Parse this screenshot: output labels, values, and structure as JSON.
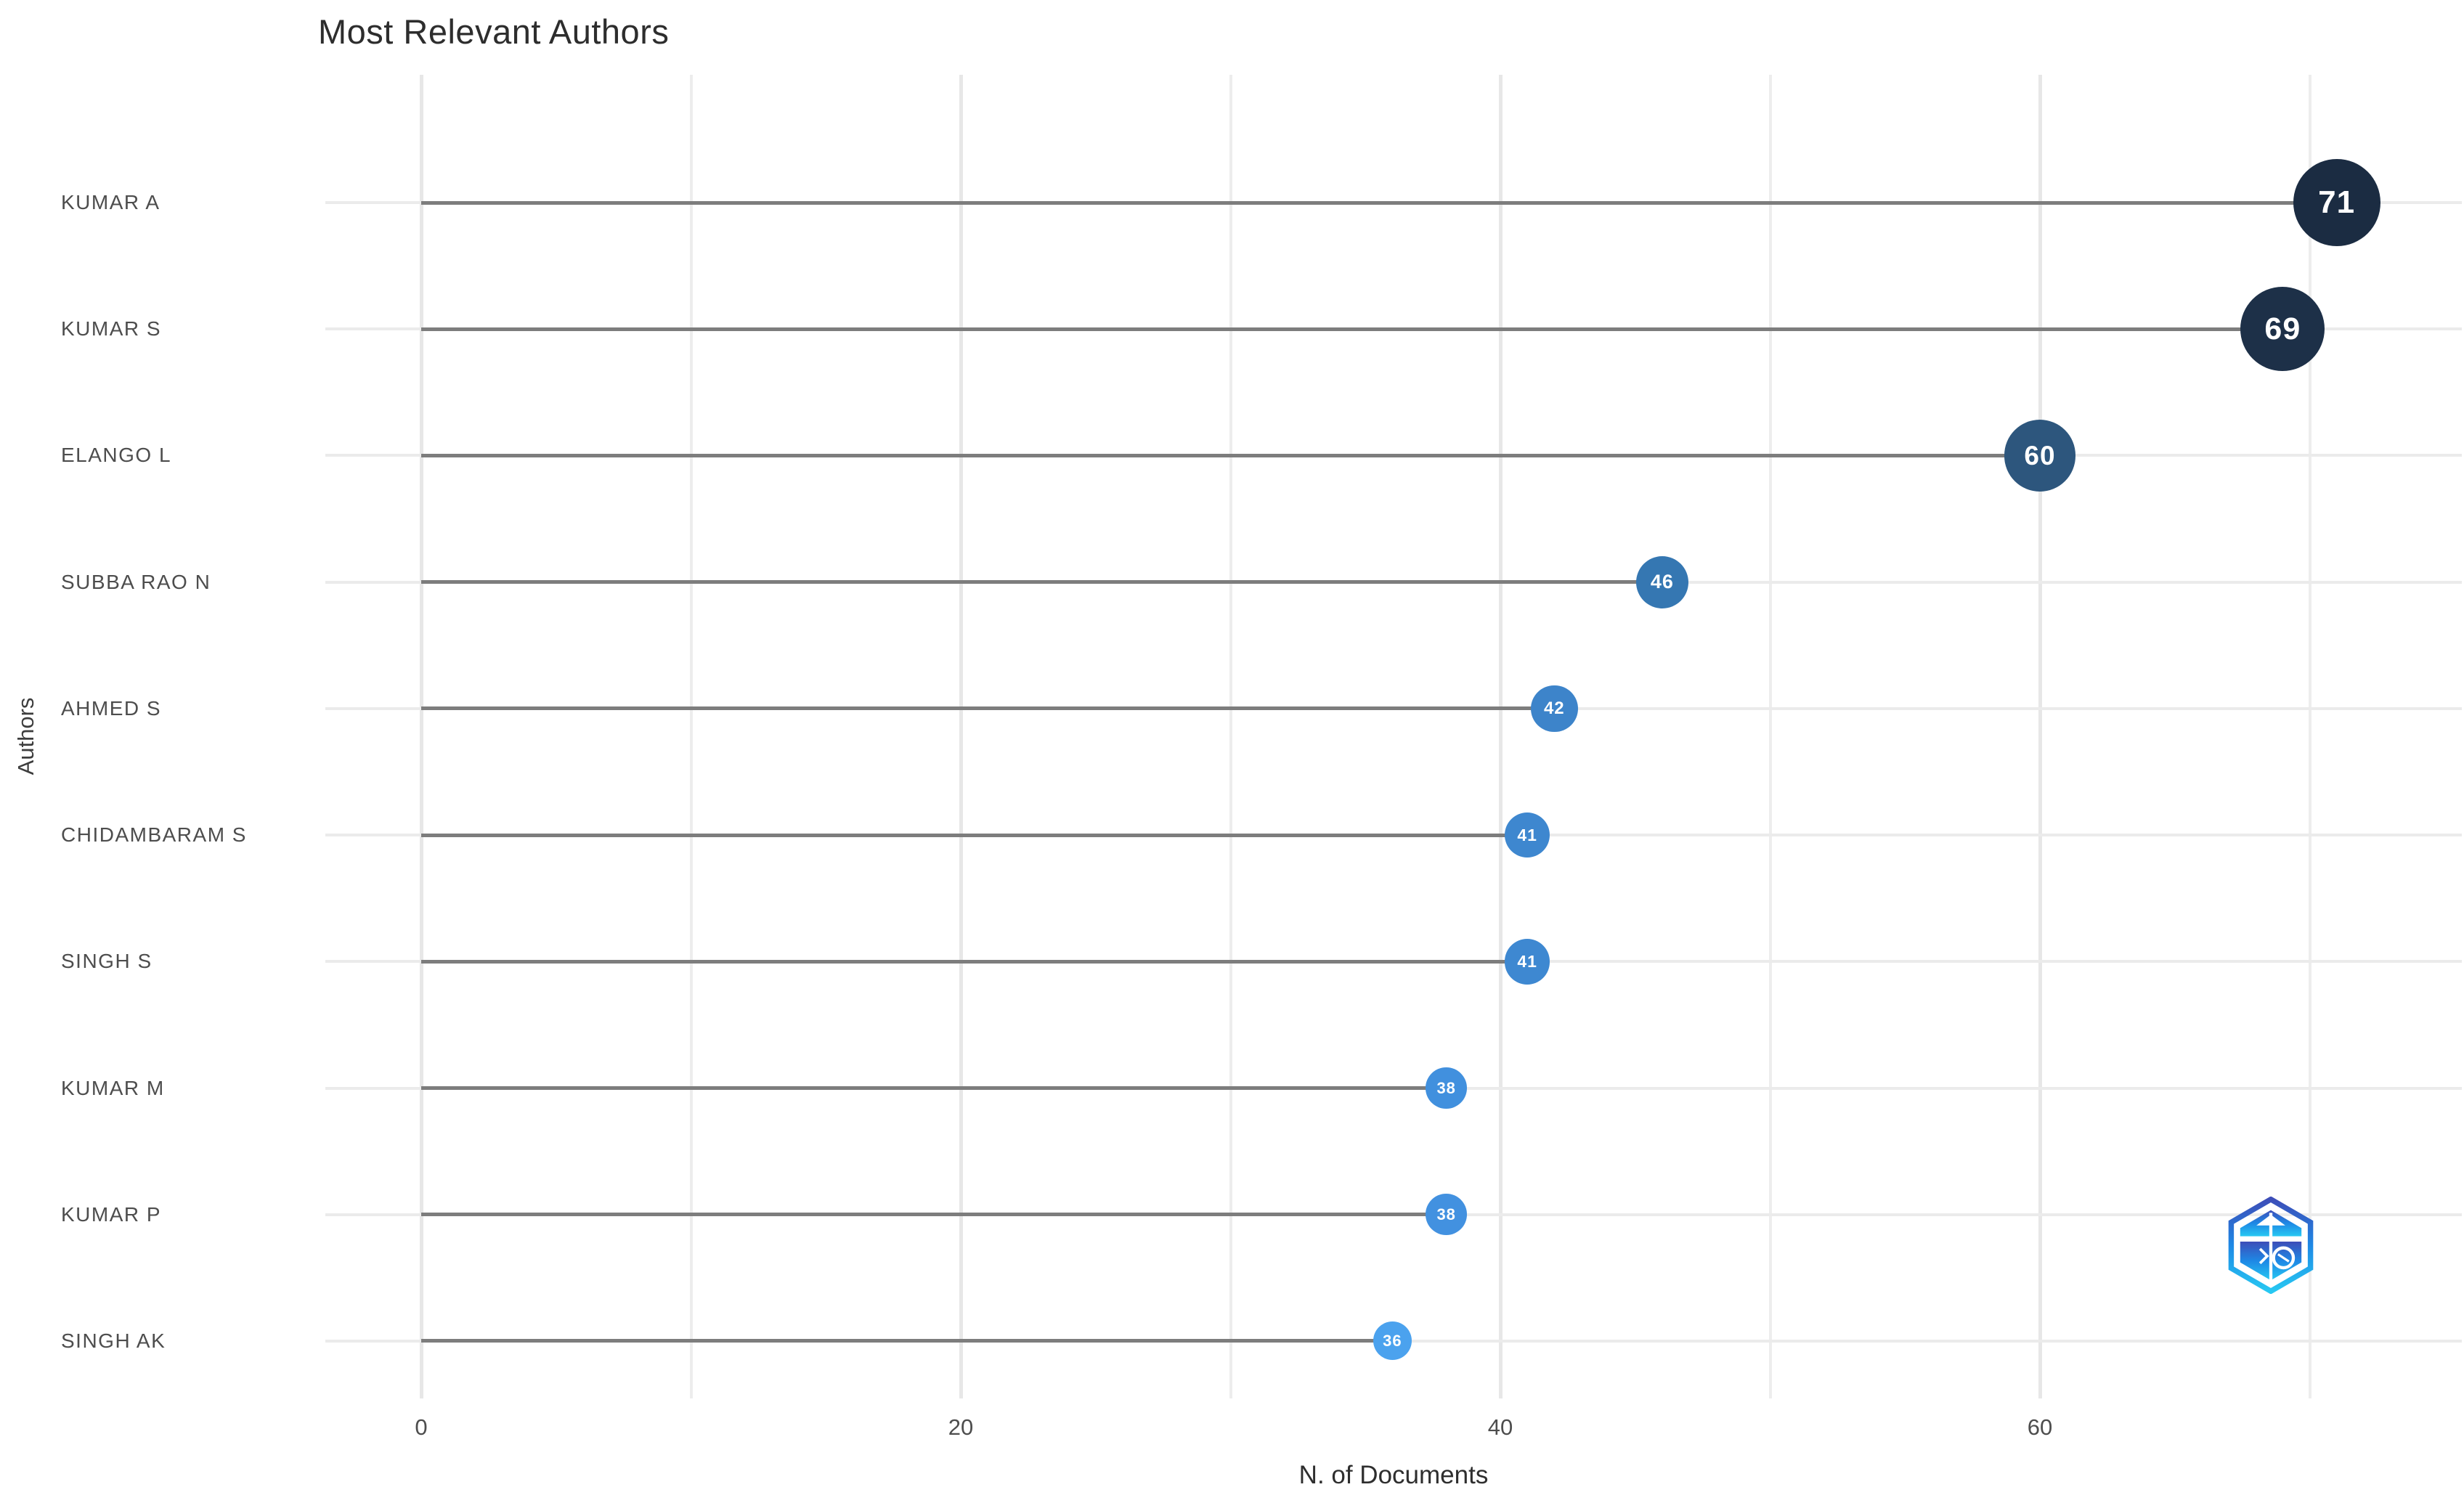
{
  "title": "Most Relevant Authors",
  "chart_data": {
    "type": "scatter",
    "variant": "lollipop-horizontal",
    "title": "Most Relevant Authors",
    "xlabel": "N. of Documents",
    "ylabel": "Authors",
    "categories": [
      "KUMAR A",
      "KUMAR S",
      "ELANGO L",
      "SUBBA RAO N",
      "AHMED S",
      "CHIDAMBARAM S",
      "SINGH S",
      "KUMAR M",
      "KUMAR P",
      "SINGH AK"
    ],
    "values": [
      71,
      69,
      60,
      46,
      42,
      41,
      41,
      38,
      38,
      36
    ],
    "point_colors": [
      "#1b2c42",
      "#1d3048",
      "#2d567d",
      "#3577b2",
      "#3d84ca",
      "#3e87cf",
      "#3e88d1",
      "#4190de",
      "#4291e0",
      "#4ba2ee"
    ],
    "point_label_color": "#ffffff",
    "xticks": [
      0,
      20,
      40,
      60
    ],
    "x_gridlines": [
      0,
      10,
      20,
      30,
      40,
      50,
      60,
      70
    ],
    "xlim": [
      0,
      73
    ],
    "grid": true,
    "legend": "none",
    "stem_color": "#7d7d7d",
    "gridline_color": "#ebebeb",
    "background_color": "#ffffff"
  },
  "logo": {
    "name": "biblioshiny-hexagon-logo",
    "gradient_top": "#3d4eb8",
    "gradient_mid": "#1e88e5",
    "gradient_bottom": "#27c8f2"
  }
}
